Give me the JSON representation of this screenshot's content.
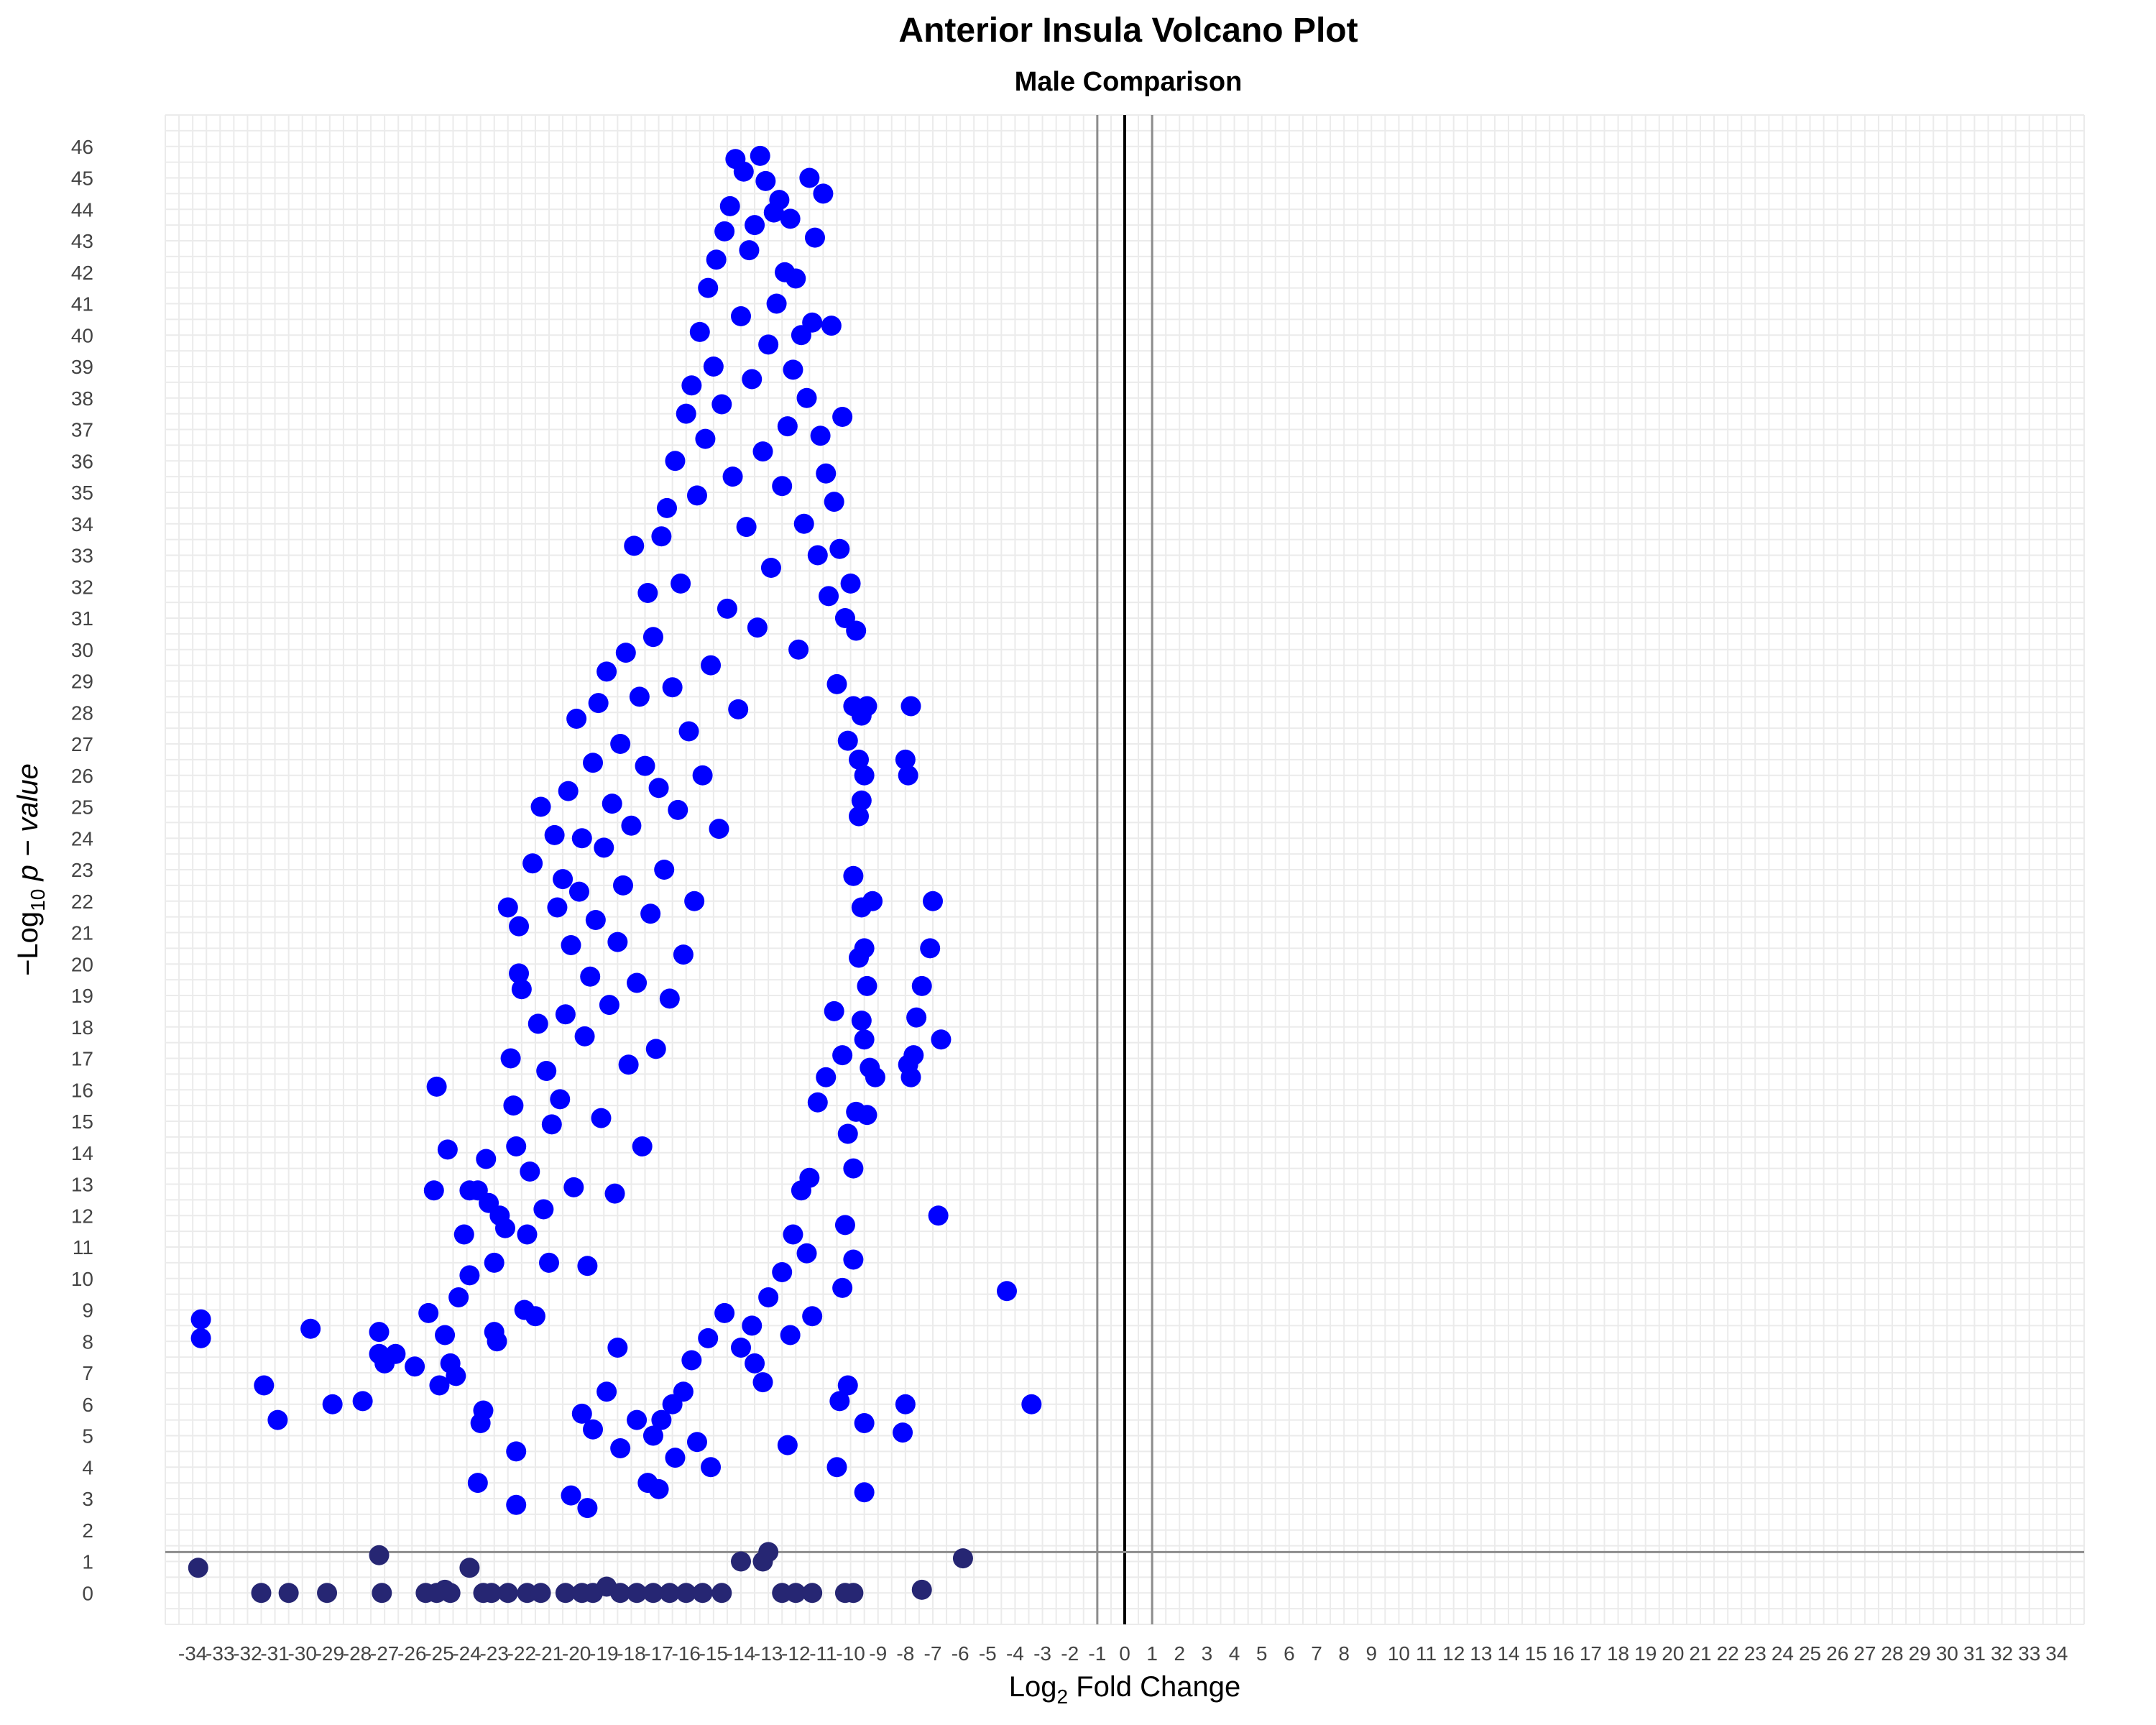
{
  "chart_data": {
    "type": "scatter",
    "title": "Anterior Insula Volcano Plot",
    "subtitle": "Male Comparison",
    "xlabel": {
      "main": "Log",
      "sub": "2",
      "rest": " Fold Change"
    },
    "ylabel": {
      "prefix": "−Log",
      "sub": "10",
      "rest": " p − value"
    },
    "xlim": [
      -35,
      35
    ],
    "ylim": [
      -1,
      47
    ],
    "x_ticks": [
      -34,
      -33,
      -32,
      -31,
      -30,
      -29,
      -28,
      -27,
      -26,
      -25,
      -24,
      -23,
      -22,
      -21,
      -20,
      -19,
      -18,
      -17,
      -16,
      -15,
      -14,
      -13,
      -12,
      -11,
      -10,
      -9,
      -8,
      -7,
      -6,
      -5,
      -4,
      -3,
      -2,
      -1,
      0,
      1,
      2,
      3,
      4,
      5,
      6,
      7,
      8,
      9,
      10,
      11,
      12,
      13,
      14,
      15,
      16,
      17,
      18,
      19,
      20,
      21,
      22,
      23,
      24,
      25,
      26,
      27,
      28,
      29,
      30,
      31,
      32,
      33,
      34
    ],
    "y_ticks": [
      0,
      1,
      2,
      3,
      4,
      5,
      6,
      7,
      8,
      9,
      10,
      11,
      12,
      13,
      14,
      15,
      16,
      17,
      18,
      19,
      20,
      21,
      22,
      23,
      24,
      25,
      26,
      27,
      28,
      29,
      30,
      31,
      32,
      33,
      34,
      35,
      36,
      37,
      38,
      39,
      40,
      41,
      42,
      43,
      44,
      45,
      46
    ],
    "grid": true,
    "reference_lines": {
      "vertical": [
        -1,
        0,
        1
      ],
      "horizontal": 1.3
    },
    "colors": {
      "significant": "#0000ff",
      "not_significant": "#262673",
      "threshold_line": "#8c8c8c",
      "zero_line": "#000000",
      "grid": "#ebebeb"
    },
    "series": [
      {
        "class": "significant",
        "points": [
          [
            -33.7,
            8.7
          ],
          [
            -33.7,
            8.1
          ],
          [
            -31.4,
            6.6
          ],
          [
            -30.9,
            5.5
          ],
          [
            -29.7,
            8.4
          ],
          [
            -28.9,
            6.0
          ],
          [
            -27.8,
            6.1
          ],
          [
            -27.2,
            8.3
          ],
          [
            -27.2,
            7.6
          ],
          [
            -27.0,
            7.3
          ],
          [
            -26.6,
            7.6
          ],
          [
            -25.9,
            7.2
          ],
          [
            -25.4,
            8.9
          ],
          [
            -25.2,
            12.8
          ],
          [
            -25.1,
            16.1
          ],
          [
            -25.0,
            6.6
          ],
          [
            -24.8,
            8.2
          ],
          [
            -24.7,
            14.1
          ],
          [
            -24.6,
            7.3
          ],
          [
            -24.4,
            6.9
          ],
          [
            -24.3,
            9.4
          ],
          [
            -24.1,
            11.4
          ],
          [
            -23.9,
            12.8
          ],
          [
            -23.9,
            10.1
          ],
          [
            -23.6,
            12.8
          ],
          [
            -23.5,
            5.4
          ],
          [
            -23.4,
            5.8
          ],
          [
            -23.3,
            13.8
          ],
          [
            -23.2,
            12.4
          ],
          [
            -23.0,
            8.3
          ],
          [
            -23.0,
            10.5
          ],
          [
            -22.9,
            8.0
          ],
          [
            -22.8,
            12.0
          ],
          [
            -22.6,
            11.6
          ],
          [
            -22.5,
            21.8
          ],
          [
            -22.4,
            17.0
          ],
          [
            -22.3,
            15.5
          ],
          [
            -22.2,
            14.2
          ],
          [
            -22.1,
            21.2
          ],
          [
            -22.1,
            19.7
          ],
          [
            -22.0,
            19.2
          ],
          [
            -21.9,
            9.0
          ],
          [
            -21.8,
            11.4
          ],
          [
            -21.7,
            13.4
          ],
          [
            -21.6,
            23.2
          ],
          [
            -21.5,
            8.8
          ],
          [
            -21.4,
            18.1
          ],
          [
            -21.3,
            25.0
          ],
          [
            -21.2,
            12.2
          ],
          [
            -21.1,
            16.6
          ],
          [
            -21.0,
            10.5
          ],
          [
            -20.9,
            14.9
          ],
          [
            -20.8,
            24.1
          ],
          [
            -20.7,
            21.8
          ],
          [
            -20.6,
            15.7
          ],
          [
            -20.5,
            22.7
          ],
          [
            -20.4,
            18.4
          ],
          [
            -20.3,
            25.5
          ],
          [
            -20.2,
            20.6
          ],
          [
            -20.1,
            12.9
          ],
          [
            -20.0,
            27.8
          ],
          [
            -19.9,
            22.3
          ],
          [
            -19.8,
            24.0
          ],
          [
            -19.7,
            17.7
          ],
          [
            -19.6,
            10.4
          ],
          [
            -19.5,
            19.6
          ],
          [
            -19.4,
            26.4
          ],
          [
            -19.3,
            21.4
          ],
          [
            -19.2,
            28.3
          ],
          [
            -19.1,
            15.1
          ],
          [
            -19.0,
            23.7
          ],
          [
            -18.9,
            29.3
          ],
          [
            -18.8,
            18.7
          ],
          [
            -18.7,
            25.1
          ],
          [
            -18.6,
            12.7
          ],
          [
            -18.5,
            20.7
          ],
          [
            -18.4,
            27.0
          ],
          [
            -18.3,
            22.5
          ],
          [
            -18.2,
            29.9
          ],
          [
            -18.1,
            16.8
          ],
          [
            -18.0,
            24.4
          ],
          [
            -17.9,
            33.3
          ],
          [
            -17.8,
            19.4
          ],
          [
            -17.7,
            28.5
          ],
          [
            -17.6,
            14.2
          ],
          [
            -17.5,
            26.3
          ],
          [
            -17.4,
            31.8
          ],
          [
            -17.3,
            21.6
          ],
          [
            -17.2,
            30.4
          ],
          [
            -17.1,
            17.3
          ],
          [
            -17.0,
            25.6
          ],
          [
            -16.9,
            33.6
          ],
          [
            -16.8,
            23.0
          ],
          [
            -16.7,
            34.5
          ],
          [
            -16.6,
            18.9
          ],
          [
            -16.5,
            28.8
          ],
          [
            -16.4,
            36.0
          ],
          [
            -16.3,
            24.9
          ],
          [
            -16.2,
            32.1
          ],
          [
            -16.1,
            20.3
          ],
          [
            -16.0,
            37.5
          ],
          [
            -15.9,
            27.4
          ],
          [
            -15.8,
            38.4
          ],
          [
            -15.7,
            22.0
          ],
          [
            -15.6,
            34.9
          ],
          [
            -15.5,
            40.1
          ],
          [
            -15.4,
            26.0
          ],
          [
            -15.3,
            36.7
          ],
          [
            -15.2,
            41.5
          ],
          [
            -15.1,
            29.5
          ],
          [
            -15.0,
            39.0
          ],
          [
            -14.9,
            42.4
          ],
          [
            -14.8,
            24.3
          ],
          [
            -14.7,
            37.8
          ],
          [
            -14.6,
            43.3
          ],
          [
            -14.5,
            31.3
          ],
          [
            -14.4,
            44.1
          ],
          [
            -14.3,
            35.5
          ],
          [
            -14.2,
            45.6
          ],
          [
            -14.1,
            28.1
          ],
          [
            -14.0,
            40.6
          ],
          [
            -13.9,
            45.2
          ],
          [
            -13.8,
            33.9
          ],
          [
            -13.7,
            42.7
          ],
          [
            -13.6,
            38.6
          ],
          [
            -13.5,
            43.5
          ],
          [
            -13.4,
            30.7
          ],
          [
            -13.3,
            45.7
          ],
          [
            -13.2,
            36.3
          ],
          [
            -13.1,
            44.9
          ],
          [
            -13.0,
            39.7
          ],
          [
            -12.9,
            32.6
          ],
          [
            -12.8,
            43.9
          ],
          [
            -12.7,
            41.0
          ],
          [
            -12.6,
            44.3
          ],
          [
            -12.5,
            35.2
          ],
          [
            -12.4,
            42.0
          ],
          [
            -12.3,
            37.1
          ],
          [
            -12.2,
            43.7
          ],
          [
            -12.1,
            38.9
          ],
          [
            -12.0,
            41.8
          ],
          [
            -11.9,
            30.0
          ],
          [
            -11.8,
            40.0
          ],
          [
            -11.7,
            34.0
          ],
          [
            -11.6,
            38.0
          ],
          [
            -11.5,
            45.0
          ],
          [
            -11.4,
            40.4
          ],
          [
            -11.3,
            43.1
          ],
          [
            -11.2,
            33.0
          ],
          [
            -11.1,
            36.8
          ],
          [
            -11.0,
            44.5
          ],
          [
            -10.9,
            35.6
          ],
          [
            -10.8,
            31.7
          ],
          [
            -10.7,
            40.3
          ],
          [
            -10.6,
            34.7
          ],
          [
            -10.5,
            28.9
          ],
          [
            -10.4,
            33.2
          ],
          [
            -10.3,
            37.4
          ],
          [
            -10.2,
            31.0
          ],
          [
            -10.1,
            27.1
          ],
          [
            -10.0,
            32.1
          ],
          [
            -9.9,
            28.2
          ],
          [
            -9.8,
            30.6
          ],
          [
            -9.7,
            26.5
          ],
          [
            -9.6,
            27.9
          ],
          [
            -9.5,
            26.0
          ],
          [
            -9.4,
            28.2
          ],
          [
            -9.6,
            25.2
          ],
          [
            -9.7,
            24.7
          ],
          [
            -9.9,
            22.8
          ],
          [
            -9.6,
            21.8
          ],
          [
            -9.7,
            20.2
          ],
          [
            -9.5,
            20.5
          ],
          [
            -9.4,
            19.3
          ],
          [
            -9.6,
            18.2
          ],
          [
            -9.2,
            22.0
          ],
          [
            -9.5,
            17.6
          ],
          [
            -9.3,
            16.7
          ],
          [
            -9.1,
            16.4
          ],
          [
            -9.4,
            15.2
          ],
          [
            -9.8,
            15.3
          ],
          [
            -10.1,
            14.6
          ],
          [
            -9.9,
            13.5
          ],
          [
            -10.3,
            17.1
          ],
          [
            -10.6,
            18.5
          ],
          [
            -10.9,
            16.4
          ],
          [
            -11.2,
            15.6
          ],
          [
            -11.5,
            13.2
          ],
          [
            -11.8,
            12.8
          ],
          [
            -10.2,
            11.7
          ],
          [
            -9.9,
            10.6
          ],
          [
            -10.3,
            9.7
          ],
          [
            -11.6,
            10.8
          ],
          [
            -12.1,
            11.4
          ],
          [
            -12.5,
            10.2
          ],
          [
            -11.4,
            8.8
          ],
          [
            -12.2,
            8.2
          ],
          [
            -13.0,
            9.4
          ],
          [
            -13.6,
            8.5
          ],
          [
            -14.0,
            7.8
          ],
          [
            -13.5,
            7.3
          ],
          [
            -13.2,
            6.7
          ],
          [
            -14.6,
            8.9
          ],
          [
            -15.2,
            8.1
          ],
          [
            -15.8,
            7.4
          ],
          [
            -16.1,
            6.4
          ],
          [
            -16.5,
            6.0
          ],
          [
            -16.9,
            5.5
          ],
          [
            -17.2,
            5.0
          ],
          [
            -17.8,
            5.5
          ],
          [
            -15.6,
            4.8
          ],
          [
            -15.1,
            4.0
          ],
          [
            -16.4,
            4.3
          ],
          [
            -17.0,
            3.3
          ],
          [
            -17.4,
            3.5
          ],
          [
            -18.4,
            4.6
          ],
          [
            -19.4,
            5.2
          ],
          [
            -19.8,
            5.7
          ],
          [
            -18.9,
            6.4
          ],
          [
            -18.5,
            7.8
          ],
          [
            -20.2,
            3.1
          ],
          [
            -19.6,
            2.7
          ],
          [
            -22.2,
            2.8
          ],
          [
            -22.2,
            4.5
          ],
          [
            -23.6,
            3.5
          ],
          [
            -12.3,
            4.7
          ],
          [
            -10.5,
            4.0
          ],
          [
            -9.5,
            3.2
          ],
          [
            -10.4,
            6.1
          ],
          [
            -10.1,
            6.6
          ],
          [
            -9.5,
            5.4
          ],
          [
            -8.1,
            5.1
          ],
          [
            -8.0,
            6.0
          ],
          [
            -7.1,
            20.5
          ],
          [
            -7.0,
            22.0
          ],
          [
            -7.6,
            18.3
          ],
          [
            -7.7,
            17.1
          ],
          [
            -7.9,
            16.8
          ],
          [
            -7.8,
            16.4
          ],
          [
            -7.4,
            19.3
          ],
          [
            -8.0,
            26.5
          ],
          [
            -7.8,
            28.2
          ],
          [
            -7.9,
            26.0
          ],
          [
            -6.8,
            12.0
          ],
          [
            -6.7,
            17.6
          ],
          [
            -4.3,
            9.6
          ],
          [
            -3.4,
            6.0
          ]
        ]
      },
      {
        "class": "not_significant",
        "points": [
          [
            -33.8,
            0.8
          ],
          [
            -31.5,
            0.0
          ],
          [
            -30.5,
            0.0
          ],
          [
            -29.1,
            0.0
          ],
          [
            -27.2,
            1.2
          ],
          [
            -27.1,
            0.0
          ],
          [
            -25.5,
            0.0
          ],
          [
            -25.1,
            0.0
          ],
          [
            -24.8,
            0.1
          ],
          [
            -24.6,
            0.0
          ],
          [
            -23.9,
            0.8
          ],
          [
            -23.4,
            0.0
          ],
          [
            -23.1,
            0.0
          ],
          [
            -22.5,
            0.0
          ],
          [
            -21.8,
            0.0
          ],
          [
            -21.3,
            0.0
          ],
          [
            -20.4,
            0.0
          ],
          [
            -19.8,
            0.0
          ],
          [
            -19.4,
            0.0
          ],
          [
            -18.9,
            0.2
          ],
          [
            -18.4,
            0.0
          ],
          [
            -17.8,
            0.0
          ],
          [
            -17.2,
            0.0
          ],
          [
            -16.6,
            0.0
          ],
          [
            -16.0,
            0.0
          ],
          [
            -15.4,
            0.0
          ],
          [
            -14.7,
            0.0
          ],
          [
            -14.0,
            1.0
          ],
          [
            -13.2,
            1.0
          ],
          [
            -13.0,
            1.3
          ],
          [
            -12.5,
            0.0
          ],
          [
            -12.0,
            0.0
          ],
          [
            -11.4,
            0.0
          ],
          [
            -10.2,
            0.0
          ],
          [
            -9.9,
            0.0
          ],
          [
            -7.4,
            0.1
          ],
          [
            -5.9,
            1.1
          ]
        ]
      }
    ]
  }
}
